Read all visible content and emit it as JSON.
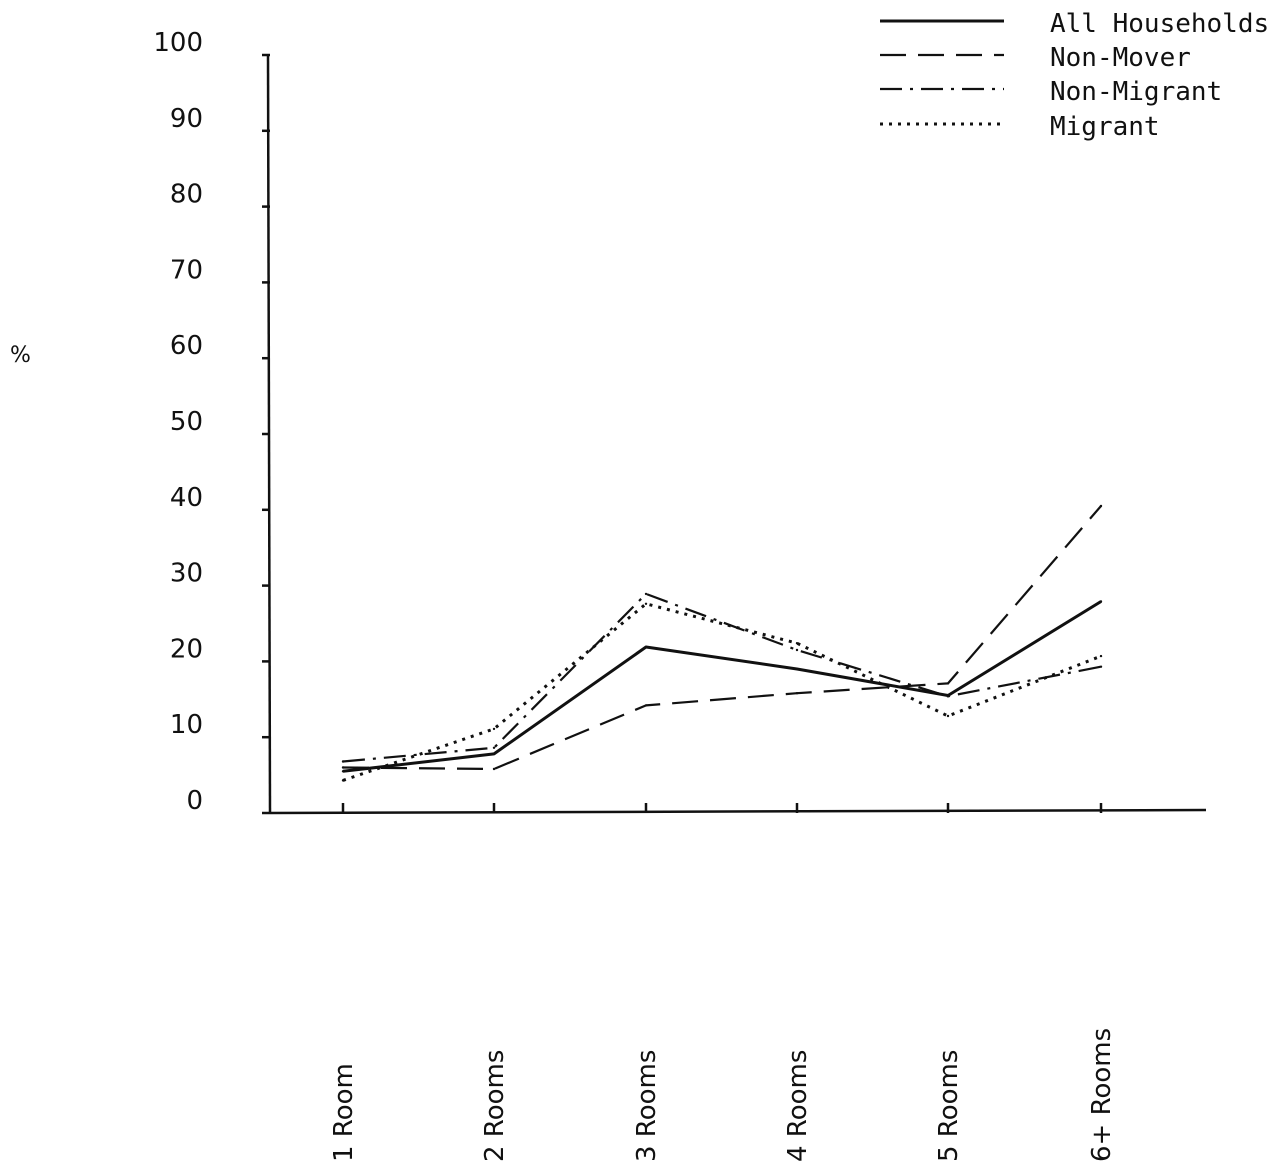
{
  "chart_data": {
    "type": "line",
    "title": "",
    "xlabel": "",
    "ylabel": "%",
    "categories": [
      "1 Room",
      "2 Rooms",
      "3 Rooms",
      "4 Rooms",
      "5 Rooms",
      "6+ Rooms"
    ],
    "yticks": [
      "0",
      "10",
      "20",
      "30",
      "40",
      "50",
      "60",
      "70",
      "80",
      "90",
      "100"
    ],
    "ylim": [
      0,
      100
    ],
    "grid": false,
    "legend_position": "top-right",
    "series": [
      {
        "name": "All Households",
        "style": "solid",
        "values": [
          5.5,
          7.8,
          21.9,
          19.0,
          15.5,
          27.9
        ]
      },
      {
        "name": "Non-Mover",
        "style": "dashed",
        "values": [
          6.0,
          5.8,
          14.2,
          15.8,
          17.1,
          40.5
        ]
      },
      {
        "name": "Non-Migrant",
        "style": "dashdot",
        "values": [
          6.8,
          8.6,
          28.9,
          21.5,
          15.4,
          19.3
        ]
      },
      {
        "name": "Migrant",
        "style": "dotted",
        "values": [
          4.3,
          11.1,
          27.6,
          22.4,
          12.8,
          20.7
        ]
      }
    ]
  }
}
